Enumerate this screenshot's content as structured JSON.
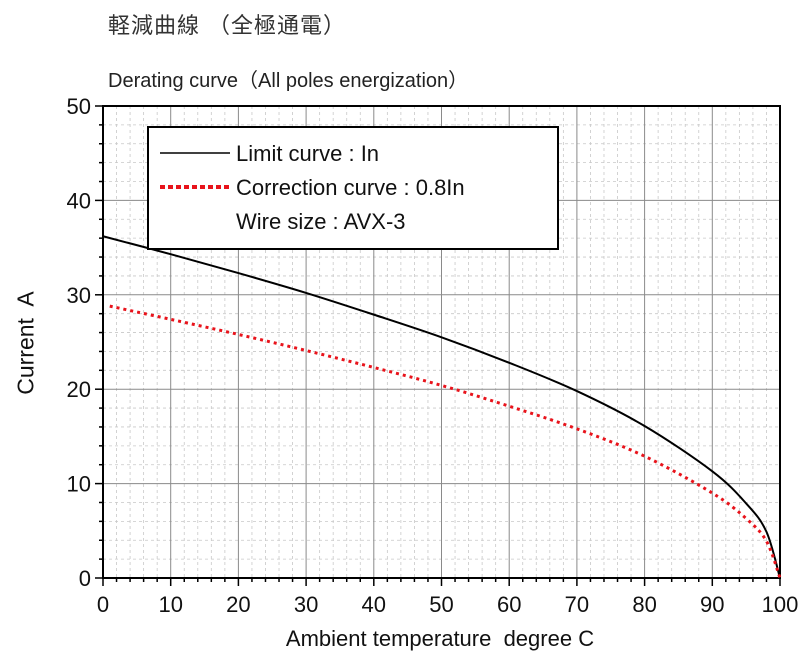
{
  "chart_data": {
    "type": "line",
    "title": "軽減曲線 （全極通電）",
    "subtitle": "Derating curve（All poles energization）",
    "xlabel": "Ambient temperature  degree C",
    "ylabel": "Current  A",
    "xlim": [
      0,
      100
    ],
    "ylim": [
      0,
      50
    ],
    "x_ticks": [
      0,
      10,
      20,
      30,
      40,
      50,
      60,
      70,
      80,
      90,
      100
    ],
    "y_ticks": [
      0,
      10,
      20,
      30,
      40,
      50
    ],
    "x_tick_labels": [
      "0",
      "10",
      "20",
      "30",
      "40",
      "50",
      "60",
      "70",
      "80",
      "90",
      "100"
    ],
    "y_tick_labels": [
      "0",
      "10",
      "20",
      "30",
      "40",
      "50"
    ],
    "grid": true,
    "legend_position": "top-left",
    "legend_note": "Wire size : AVX-3",
    "series": [
      {
        "name": "Limit curve : In",
        "style": "solid",
        "color": "#000000",
        "x": [
          0,
          10,
          20,
          30,
          40,
          50,
          60,
          70,
          80,
          90,
          95,
          98,
          100
        ],
        "y": [
          36.2,
          34.3,
          32.3,
          30.2,
          27.9,
          25.5,
          22.8,
          19.8,
          16.1,
          11.3,
          7.9,
          4.9,
          0
        ]
      },
      {
        "name": "Correction curve : 0.8In",
        "style": "dotted",
        "color": "#e8131b",
        "x": [
          1,
          10,
          20,
          30,
          40,
          50,
          60,
          70,
          80,
          90,
          95,
          98,
          100
        ],
        "y": [
          28.8,
          27.4,
          25.8,
          24.1,
          22.3,
          20.4,
          18.2,
          15.8,
          12.9,
          9.0,
          6.3,
          3.9,
          0
        ]
      }
    ]
  }
}
